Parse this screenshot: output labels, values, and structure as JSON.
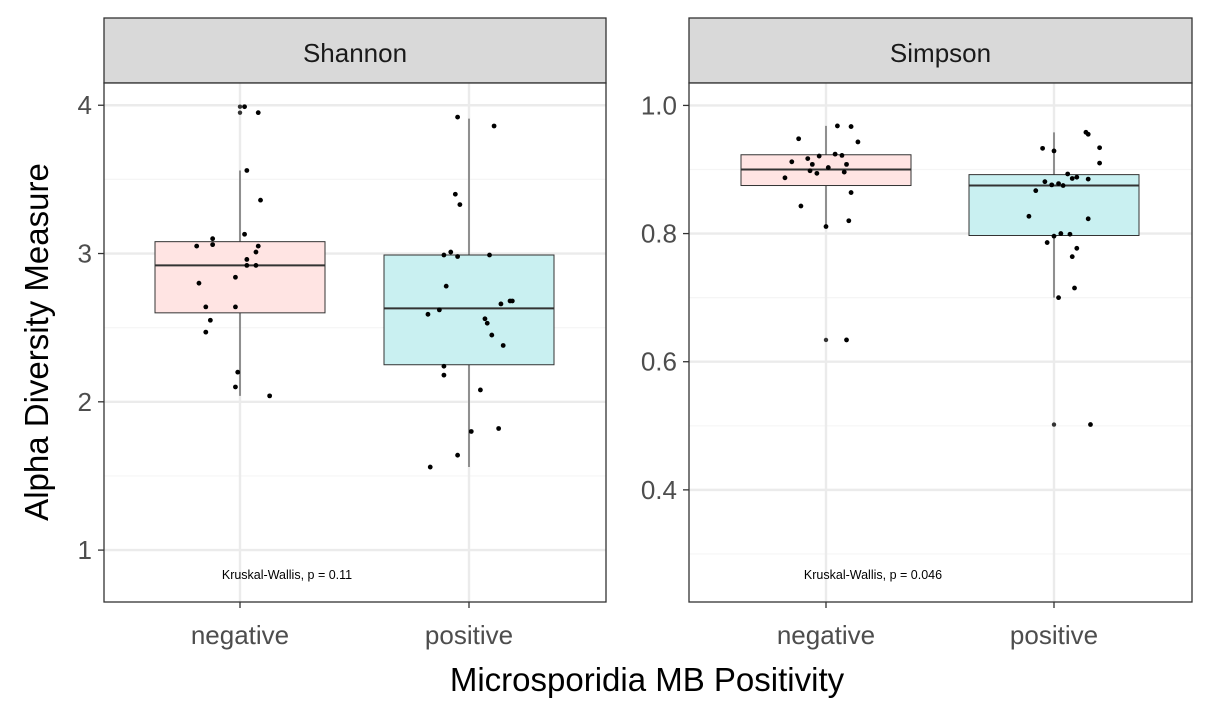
{
  "figure": {
    "xlabel": "Microsporidia MB Positivity",
    "ylabel": "Alpha Diversity Measure"
  },
  "colors": {
    "negative_fill": "#FFE4E3",
    "positive_fill": "#C9F0F1",
    "strip_fill": "#D9D9D9",
    "grid_major": "#EBEBEB",
    "grid_minor": "#F5F5F5",
    "points": "#000000"
  },
  "chart_data": [
    {
      "type": "box",
      "title": "Shannon",
      "categories": [
        "negative",
        "positive"
      ],
      "ylim": [
        0.65,
        4.15
      ],
      "yticks": [
        1,
        2,
        3,
        4
      ],
      "grid": true,
      "boxes": [
        {
          "name": "negative",
          "whisker_low": 2.04,
          "q1": 2.6,
          "median": 2.92,
          "q3": 3.08,
          "whisker_high": 3.56,
          "outliers": [
            3.95,
            3.99
          ]
        },
        {
          "name": "positive",
          "whisker_low": 1.56,
          "q1": 2.25,
          "median": 2.63,
          "q3": 2.99,
          "whisker_high": 3.91,
          "outliers": []
        }
      ],
      "points": [
        {
          "group": "negative",
          "jitter": 0.02,
          "y": 3.99
        },
        {
          "group": "negative",
          "jitter": 0.08,
          "y": 3.95
        },
        {
          "group": "negative",
          "jitter": 0.03,
          "y": 3.56
        },
        {
          "group": "negative",
          "jitter": 0.09,
          "y": 3.36
        },
        {
          "group": "negative",
          "jitter": 0.02,
          "y": 3.13
        },
        {
          "group": "negative",
          "jitter": -0.12,
          "y": 3.1
        },
        {
          "group": "negative",
          "jitter": -0.12,
          "y": 3.06
        },
        {
          "group": "negative",
          "jitter": -0.19,
          "y": 3.05
        },
        {
          "group": "negative",
          "jitter": 0.08,
          "y": 3.05
        },
        {
          "group": "negative",
          "jitter": 0.07,
          "y": 3.01
        },
        {
          "group": "negative",
          "jitter": 0.03,
          "y": 2.96
        },
        {
          "group": "negative",
          "jitter": 0.07,
          "y": 2.92
        },
        {
          "group": "negative",
          "jitter": 0.03,
          "y": 2.92
        },
        {
          "group": "negative",
          "jitter": -0.02,
          "y": 2.84
        },
        {
          "group": "negative",
          "jitter": -0.18,
          "y": 2.8
        },
        {
          "group": "negative",
          "jitter": -0.15,
          "y": 2.64
        },
        {
          "group": "negative",
          "jitter": -0.02,
          "y": 2.64
        },
        {
          "group": "negative",
          "jitter": -0.13,
          "y": 2.55
        },
        {
          "group": "negative",
          "jitter": -0.15,
          "y": 2.47
        },
        {
          "group": "negative",
          "jitter": -0.01,
          "y": 2.2
        },
        {
          "group": "negative",
          "jitter": -0.02,
          "y": 2.1
        },
        {
          "group": "negative",
          "jitter": 0.13,
          "y": 2.04
        },
        {
          "group": "positive",
          "jitter": -0.05,
          "y": 3.92
        },
        {
          "group": "positive",
          "jitter": 0.11,
          "y": 3.86
        },
        {
          "group": "positive",
          "jitter": -0.06,
          "y": 3.4
        },
        {
          "group": "positive",
          "jitter": -0.04,
          "y": 3.33
        },
        {
          "group": "positive",
          "jitter": -0.08,
          "y": 3.01
        },
        {
          "group": "positive",
          "jitter": -0.11,
          "y": 2.99
        },
        {
          "group": "positive",
          "jitter": -0.05,
          "y": 2.98
        },
        {
          "group": "positive",
          "jitter": 0.09,
          "y": 2.99
        },
        {
          "group": "positive",
          "jitter": -0.1,
          "y": 2.78
        },
        {
          "group": "positive",
          "jitter": 0.18,
          "y": 2.68
        },
        {
          "group": "positive",
          "jitter": 0.19,
          "y": 2.68
        },
        {
          "group": "positive",
          "jitter": 0.14,
          "y": 2.66
        },
        {
          "group": "positive",
          "jitter": -0.13,
          "y": 2.62
        },
        {
          "group": "positive",
          "jitter": -0.18,
          "y": 2.59
        },
        {
          "group": "positive",
          "jitter": 0.07,
          "y": 2.56
        },
        {
          "group": "positive",
          "jitter": 0.08,
          "y": 2.53
        },
        {
          "group": "positive",
          "jitter": 0.1,
          "y": 2.45
        },
        {
          "group": "positive",
          "jitter": 0.15,
          "y": 2.38
        },
        {
          "group": "positive",
          "jitter": -0.11,
          "y": 2.24
        },
        {
          "group": "positive",
          "jitter": -0.11,
          "y": 2.18
        },
        {
          "group": "positive",
          "jitter": 0.05,
          "y": 2.08
        },
        {
          "group": "positive",
          "jitter": 0.01,
          "y": 1.8
        },
        {
          "group": "positive",
          "jitter": 0.13,
          "y": 1.82
        },
        {
          "group": "positive",
          "jitter": -0.05,
          "y": 1.64
        },
        {
          "group": "positive",
          "jitter": -0.17,
          "y": 1.56
        }
      ],
      "annotation": "Kruskal-Wallis, p = 0.11"
    },
    {
      "type": "box",
      "title": "Simpson",
      "categories": [
        "negative",
        "positive"
      ],
      "ylim": [
        0.225,
        1.035
      ],
      "yticks": [
        0.4,
        0.6,
        0.8,
        1.0
      ],
      "ytick_labels": [
        "0.4",
        "0.6",
        "0.8",
        "1.0"
      ],
      "grid": true,
      "boxes": [
        {
          "name": "negative",
          "whisker_low": 0.81,
          "q1": 0.875,
          "median": 0.9,
          "q3": 0.923,
          "whisker_high": 0.968,
          "outliers": [
            0.634
          ]
        },
        {
          "name": "positive",
          "whisker_low": 0.7,
          "q1": 0.797,
          "median": 0.875,
          "q3": 0.892,
          "whisker_high": 0.958,
          "outliers": [
            0.502
          ]
        }
      ],
      "points": [
        {
          "group": "negative",
          "jitter": 0.05,
          "y": 0.968
        },
        {
          "group": "negative",
          "jitter": 0.11,
          "y": 0.967
        },
        {
          "group": "negative",
          "jitter": -0.12,
          "y": 0.948
        },
        {
          "group": "negative",
          "jitter": 0.14,
          "y": 0.943
        },
        {
          "group": "negative",
          "jitter": 0.04,
          "y": 0.924
        },
        {
          "group": "negative",
          "jitter": 0.07,
          "y": 0.922
        },
        {
          "group": "negative",
          "jitter": -0.03,
          "y": 0.921
        },
        {
          "group": "negative",
          "jitter": -0.08,
          "y": 0.917
        },
        {
          "group": "negative",
          "jitter": -0.15,
          "y": 0.912
        },
        {
          "group": "negative",
          "jitter": 0.09,
          "y": 0.908
        },
        {
          "group": "negative",
          "jitter": -0.06,
          "y": 0.908
        },
        {
          "group": "negative",
          "jitter": 0.01,
          "y": 0.903
        },
        {
          "group": "negative",
          "jitter": 0.08,
          "y": 0.896
        },
        {
          "group": "negative",
          "jitter": -0.07,
          "y": 0.898
        },
        {
          "group": "negative",
          "jitter": -0.04,
          "y": 0.894
        },
        {
          "group": "negative",
          "jitter": -0.18,
          "y": 0.887
        },
        {
          "group": "negative",
          "jitter": 0.11,
          "y": 0.864
        },
        {
          "group": "negative",
          "jitter": -0.11,
          "y": 0.843
        },
        {
          "group": "negative",
          "jitter": 0.1,
          "y": 0.82
        },
        {
          "group": "negative",
          "jitter": 0.0,
          "y": 0.811
        },
        {
          "group": "negative",
          "jitter": 0.09,
          "y": 0.634
        },
        {
          "group": "positive",
          "jitter": 0.14,
          "y": 0.958
        },
        {
          "group": "positive",
          "jitter": 0.15,
          "y": 0.955
        },
        {
          "group": "positive",
          "jitter": 0.2,
          "y": 0.934
        },
        {
          "group": "positive",
          "jitter": -0.05,
          "y": 0.933
        },
        {
          "group": "positive",
          "jitter": 0.0,
          "y": 0.929
        },
        {
          "group": "positive",
          "jitter": 0.2,
          "y": 0.91
        },
        {
          "group": "positive",
          "jitter": 0.06,
          "y": 0.893
        },
        {
          "group": "positive",
          "jitter": 0.1,
          "y": 0.888
        },
        {
          "group": "positive",
          "jitter": 0.08,
          "y": 0.886
        },
        {
          "group": "positive",
          "jitter": 0.15,
          "y": 0.885
        },
        {
          "group": "positive",
          "jitter": -0.04,
          "y": 0.881
        },
        {
          "group": "positive",
          "jitter": 0.02,
          "y": 0.878
        },
        {
          "group": "positive",
          "jitter": -0.01,
          "y": 0.876
        },
        {
          "group": "positive",
          "jitter": 0.04,
          "y": 0.875
        },
        {
          "group": "positive",
          "jitter": -0.08,
          "y": 0.867
        },
        {
          "group": "positive",
          "jitter": -0.11,
          "y": 0.827
        },
        {
          "group": "positive",
          "jitter": 0.15,
          "y": 0.823
        },
        {
          "group": "positive",
          "jitter": 0.03,
          "y": 0.8
        },
        {
          "group": "positive",
          "jitter": 0.07,
          "y": 0.799
        },
        {
          "group": "positive",
          "jitter": 0.0,
          "y": 0.796
        },
        {
          "group": "positive",
          "jitter": -0.03,
          "y": 0.786
        },
        {
          "group": "positive",
          "jitter": 0.1,
          "y": 0.777
        },
        {
          "group": "positive",
          "jitter": 0.08,
          "y": 0.764
        },
        {
          "group": "positive",
          "jitter": 0.09,
          "y": 0.715
        },
        {
          "group": "positive",
          "jitter": 0.02,
          "y": 0.7
        },
        {
          "group": "positive",
          "jitter": 0.16,
          "y": 0.502
        }
      ],
      "annotation": "Kruskal-Wallis, p = 0.046"
    }
  ]
}
